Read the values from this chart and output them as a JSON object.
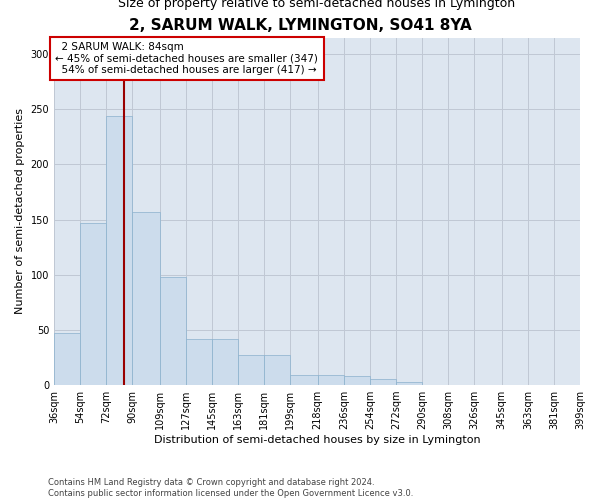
{
  "title": "2, SARUM WALK, LYMINGTON, SO41 8YA",
  "subtitle": "Size of property relative to semi-detached houses in Lymington",
  "xlabel": "Distribution of semi-detached houses by size in Lymington",
  "ylabel": "Number of semi-detached properties",
  "bar_color": "#ccdcec",
  "bar_edge_color": "#8ab0cc",
  "grid_color": "#c0c8d4",
  "bg_color": "#dde6f0",
  "marker_line_color": "#990000",
  "annotation_box_color": "#cc0000",
  "marker_value": 84,
  "marker_label": "2 SARUM WALK: 84sqm",
  "pct_smaller": 45,
  "pct_larger": 54,
  "n_smaller": 347,
  "n_larger": 417,
  "bins": [
    36,
    54,
    72,
    90,
    109,
    127,
    145,
    163,
    181,
    199,
    218,
    236,
    254,
    272,
    290,
    308,
    326,
    345,
    363,
    381,
    399
  ],
  "bin_labels": [
    "36sqm",
    "54sqm",
    "72sqm",
    "90sqm",
    "109sqm",
    "127sqm",
    "145sqm",
    "163sqm",
    "181sqm",
    "199sqm",
    "218sqm",
    "236sqm",
    "254sqm",
    "272sqm",
    "290sqm",
    "308sqm",
    "326sqm",
    "345sqm",
    "363sqm",
    "381sqm",
    "399sqm"
  ],
  "values": [
    47,
    147,
    244,
    157,
    98,
    42,
    42,
    27,
    27,
    9,
    9,
    8,
    5,
    3,
    0,
    0,
    0,
    0,
    0,
    0
  ],
  "ylim": [
    0,
    315
  ],
  "yticks": [
    0,
    50,
    100,
    150,
    200,
    250,
    300
  ],
  "footer1": "Contains HM Land Registry data © Crown copyright and database right 2024.",
  "footer2": "Contains public sector information licensed under the Open Government Licence v3.0.",
  "title_fontsize": 11,
  "subtitle_fontsize": 9,
  "axis_label_fontsize": 8,
  "tick_fontsize": 7,
  "footer_fontsize": 6
}
